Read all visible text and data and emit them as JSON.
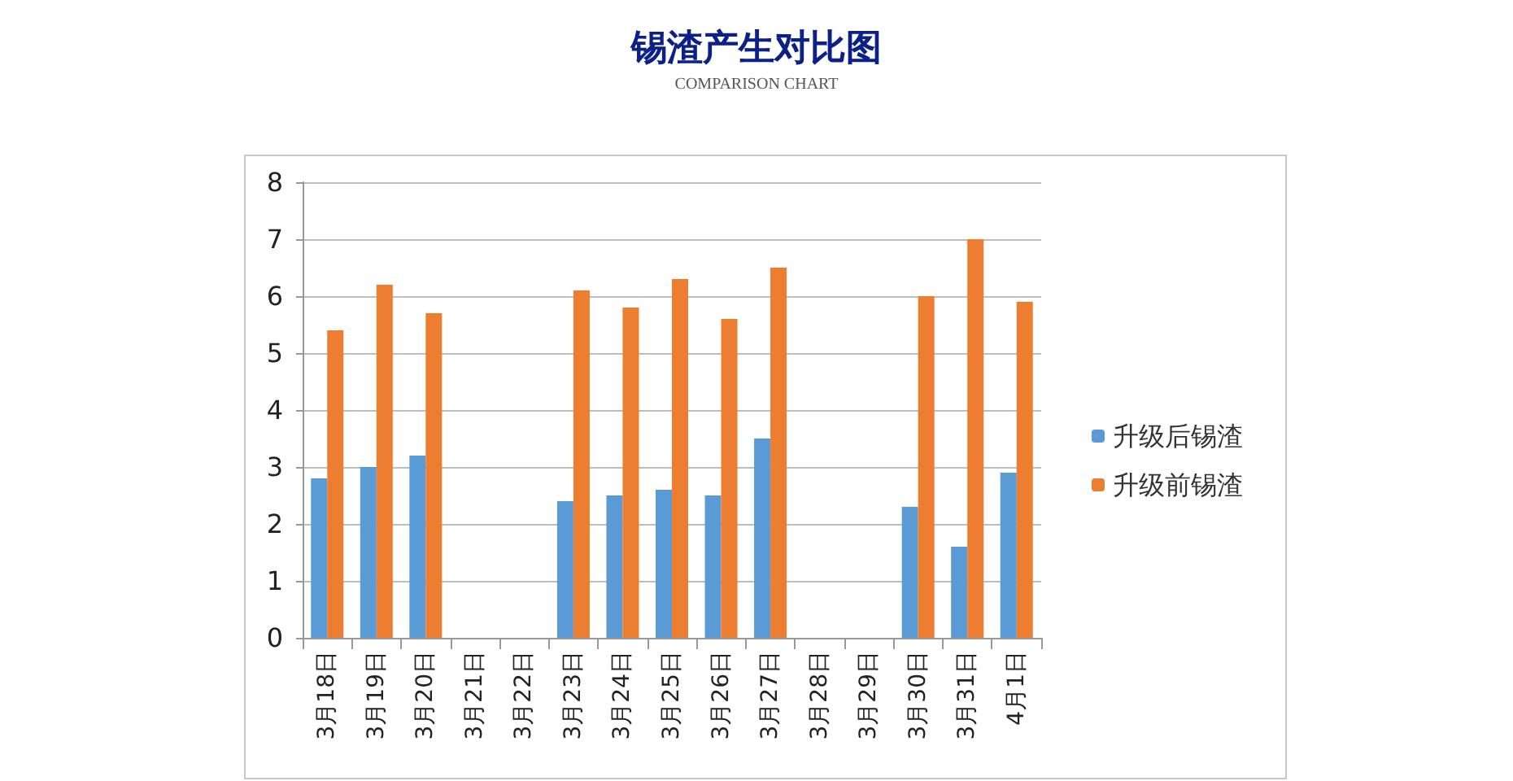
{
  "chart_data": {
    "type": "bar",
    "title": "锡渣产生对比图",
    "subtitle": "COMPARISON CHART",
    "categories": [
      "3月18日",
      "3月19日",
      "3月20日",
      "3月21日",
      "3月22日",
      "3月23日",
      "3月24日",
      "3月25日",
      "3月26日",
      "3月27日",
      "3月28日",
      "3月29日",
      "3月30日",
      "3月31日",
      "4月1日"
    ],
    "series": [
      {
        "name": "升级后锡渣",
        "color": "#5b9bd5",
        "values": [
          2.8,
          3.0,
          3.2,
          null,
          null,
          2.4,
          2.5,
          2.6,
          2.5,
          3.5,
          null,
          null,
          2.3,
          1.6,
          2.9
        ]
      },
      {
        "name": "升级前锡渣",
        "color": "#ed7d31",
        "values": [
          5.4,
          6.2,
          5.7,
          null,
          null,
          6.1,
          5.8,
          6.3,
          5.6,
          6.5,
          null,
          null,
          6.0,
          7.0,
          5.9
        ]
      }
    ],
    "ylim": [
      0,
      8
    ],
    "yticks": [
      0,
      1,
      2,
      3,
      4,
      5,
      6,
      7,
      8
    ],
    "grid": "y",
    "legend": "right"
  }
}
